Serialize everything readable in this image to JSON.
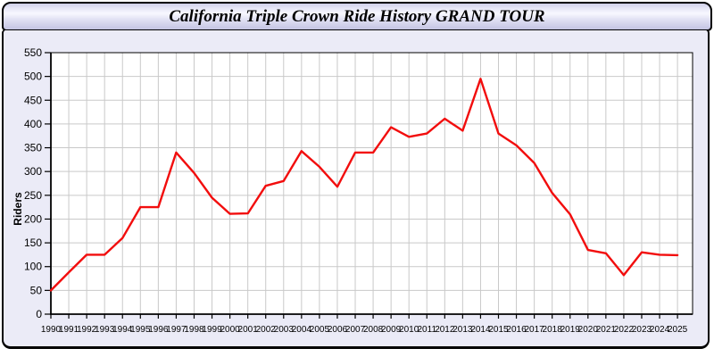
{
  "title": "California Triple Crown Ride History GRAND TOUR",
  "chart_data": {
    "type": "line",
    "title": "California Triple Crown Ride History GRAND TOUR",
    "xlabel": "",
    "ylabel": "Riders",
    "x": [
      1990,
      1991,
      1992,
      1993,
      1994,
      1995,
      1996,
      1997,
      1998,
      1999,
      2000,
      2001,
      2002,
      2003,
      2004,
      2005,
      2006,
      2007,
      2008,
      2009,
      2010,
      2011,
      2012,
      2013,
      2014,
      2015,
      2016,
      2017,
      2018,
      2019,
      2020,
      2021,
      2022,
      2023,
      2024,
      2025
    ],
    "series": [
      {
        "name": "Riders",
        "values": [
          50,
          88,
          125,
          125,
          160,
          225,
          225,
          340,
          297,
          245,
          211,
          212,
          270,
          280,
          343,
          310,
          268,
          340,
          340,
          393,
          373,
          380,
          411,
          386,
          495,
          380,
          355,
          318,
          255,
          210,
          135,
          128,
          82,
          130,
          125,
          124
        ]
      }
    ],
    "ylim": [
      0,
      550
    ],
    "ytick_step": 50,
    "grid": true,
    "legend_position": "none",
    "line_color": "#f20d0d",
    "grid_color": "#c9c9c9",
    "plot_background": "#ffffff",
    "panel_background": "#ebebf7"
  }
}
